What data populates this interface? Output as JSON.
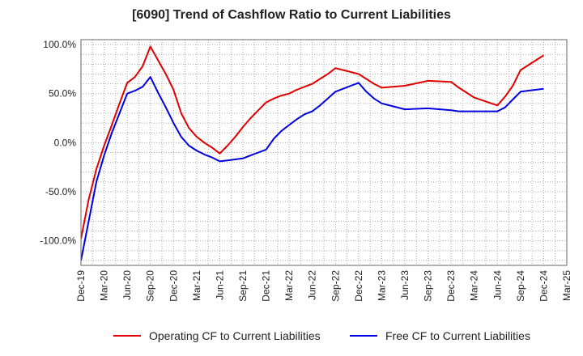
{
  "chart_data": {
    "type": "line",
    "title": "[6090]  Trend of Cashflow Ratio to Current Liabilities",
    "xlabel": "",
    "ylabel": "",
    "x_tick_labels": [
      "Dec-19",
      "Mar-20",
      "Jun-20",
      "Sep-20",
      "Dec-20",
      "Mar-21",
      "Jun-21",
      "Sep-21",
      "Dec-21",
      "Mar-22",
      "Jun-22",
      "Sep-22",
      "Dec-22",
      "Mar-23",
      "Jun-23",
      "Sep-23",
      "Dec-23",
      "Mar-24",
      "Jun-24",
      "Sep-24",
      "Dec-24",
      "Mar-25"
    ],
    "y_tick_labels": [
      "100.0%",
      "50.0%",
      "0.0%",
      "-50.0%",
      "-100.0%"
    ],
    "y_tick_values": [
      100,
      50,
      0,
      -50,
      -100
    ],
    "ylim": [
      -125,
      105
    ],
    "grid": true,
    "legend_position": "bottom",
    "x": [
      "2019-12",
      "2020-01",
      "2020-02",
      "2020-03",
      "2020-04",
      "2020-05",
      "2020-06",
      "2020-07",
      "2020-08",
      "2020-09",
      "2020-10",
      "2020-11",
      "2020-12",
      "2021-01",
      "2021-02",
      "2021-03",
      "2021-04",
      "2021-05",
      "2021-06",
      "2021-07",
      "2021-08",
      "2021-09",
      "2021-10",
      "2021-11",
      "2021-12",
      "2022-01",
      "2022-02",
      "2022-03",
      "2022-04",
      "2022-05",
      "2022-06",
      "2022-07",
      "2022-08",
      "2022-09",
      "2022-10",
      "2022-11",
      "2022-12",
      "2023-01",
      "2023-02",
      "2023-03",
      "2023-06",
      "2023-09",
      "2023-12",
      "2024-01",
      "2024-02",
      "2024-03",
      "2024-06",
      "2024-07",
      "2024-08",
      "2024-09",
      "2024-12"
    ],
    "series": [
      {
        "name": "Operating CF to Current Liabilities",
        "color": "#e00000",
        "values": [
          -98,
          -58,
          -27,
          -3,
          18,
          40,
          61,
          67,
          78,
          98,
          84,
          70,
          54,
          30,
          15,
          6,
          0,
          -5,
          -11,
          -3,
          6,
          16,
          25,
          33,
          41,
          45,
          48,
          50,
          54,
          57,
          60,
          65,
          70,
          76,
          74,
          72,
          70,
          65,
          60,
          56,
          58,
          63,
          62,
          56,
          51,
          46,
          38,
          47,
          58,
          74,
          89
        ]
      },
      {
        "name": "Free CF to Current Liabilities",
        "color": "#0000e0",
        "values": [
          -120,
          -80,
          -40,
          -13,
          10,
          30,
          50,
          53,
          57,
          67,
          51,
          36,
          20,
          6,
          -3,
          -8,
          -12,
          -15,
          -19,
          -18,
          -17,
          -16,
          -13,
          -10,
          -7,
          4,
          12,
          18,
          24,
          29,
          32,
          38,
          45,
          52,
          55,
          58,
          61,
          52,
          45,
          40,
          34,
          35,
          33,
          32,
          32,
          32,
          32,
          36,
          44,
          52,
          55
        ]
      }
    ]
  },
  "legend": {
    "items": [
      {
        "label": "Operating CF to Current Liabilities",
        "color": "#e00000"
      },
      {
        "label": "Free CF to Current Liabilities",
        "color": "#0000e0"
      }
    ]
  }
}
